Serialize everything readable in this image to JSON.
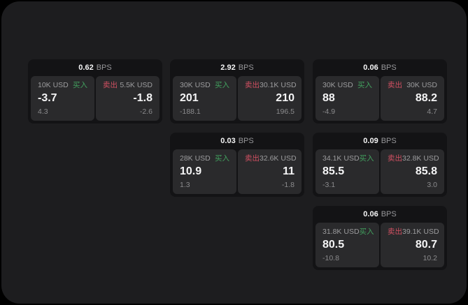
{
  "labels": {
    "unit": "BPS",
    "buy": "买入",
    "sell": "卖出"
  },
  "colors": {
    "background": "#000000",
    "window": "#1d1d1f",
    "card": "#131315",
    "tile": "#2a2a2c",
    "buy_accent": "#42a05e",
    "sell_accent": "#d15062",
    "value_text": "#f4f4f5",
    "muted_text": "#9c9c9e"
  },
  "cards": [
    {
      "bps": "0.62",
      "buy": {
        "size": "10K USD",
        "value": "-3.7",
        "delta": "4.3"
      },
      "sell": {
        "size": "5.5K USD",
        "value": "-1.8",
        "delta": "-2.6"
      }
    },
    {
      "bps": "2.92",
      "buy": {
        "size": "30K USD",
        "value": "201",
        "delta": "-188.1"
      },
      "sell": {
        "size": "30.1K USD",
        "value": "210",
        "delta": "196.5"
      }
    },
    {
      "bps": "0.06",
      "buy": {
        "size": "30K USD",
        "value": "88",
        "delta": "-4.9"
      },
      "sell": {
        "size": "30K USD",
        "value": "88.2",
        "delta": "4.7"
      }
    },
    {
      "bps": "0.03",
      "buy": {
        "size": "28K USD",
        "value": "10.9",
        "delta": "1.3"
      },
      "sell": {
        "size": "32.6K USD",
        "value": "11",
        "delta": "-1.8"
      }
    },
    {
      "bps": "0.09",
      "buy": {
        "size": "34.1K USD",
        "value": "85.5",
        "delta": "-3.1"
      },
      "sell": {
        "size": "32.8K USD",
        "value": "85.8",
        "delta": "3.0"
      }
    },
    {
      "bps": "0.06",
      "buy": {
        "size": "31.8K USD",
        "value": "80.5",
        "delta": "-10.8"
      },
      "sell": {
        "size": "39.1K USD",
        "value": "80.7",
        "delta": "10.2"
      }
    }
  ]
}
